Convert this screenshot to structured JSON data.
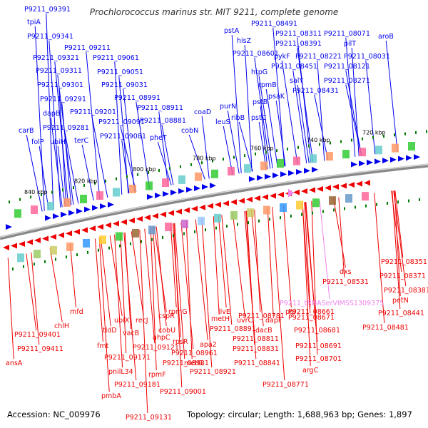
{
  "title": "Prochlorococcus marinus str. MIT 9211, complete genome",
  "footer": {
    "accession": "Accession: NC_009976",
    "summary": "Topology: circular; Length: 1,688,963 bp; Genes: 1,897"
  },
  "colors": {
    "forward": "#0000ee",
    "reverse": "#ee0000",
    "rna": "#ee82ee",
    "backbone": "#888888",
    "tick": "#007a00"
  },
  "scale_labels": [
    "840 kbp",
    "820 kbp",
    "800 kbp",
    "780 kbp",
    "760 kbp",
    "740 kbp",
    "720 kbp"
  ],
  "top_labels": [
    "P9211_09391",
    "tpiA",
    "P9211_09341",
    "P9211_09321",
    "P9211_09311",
    "P9211_09301",
    "P9211_09291",
    "dapB",
    "P9211_09281",
    "carB",
    "ubiH",
    "folP",
    "terC",
    "P9211_09211",
    "P9211_09201",
    "P9211_09061",
    "P9211_09051",
    "P9211_09031",
    "P9211_08991",
    "P9211_09091",
    "P9211_09081",
    "P9211_08911",
    "P9211_08881",
    "pheT",
    "cobN",
    "coaD",
    "leuS",
    "purN",
    "ribB",
    "P9211_08601",
    "hisZ",
    "pstA",
    "P9211_08491",
    "P9211_08311",
    "P9211_08391",
    "pilT",
    "P9211_08071",
    "aroB",
    "htpG",
    "pykF",
    "P9211_08221",
    "P9211_08031",
    "rpmB",
    "P9211_08451",
    "P9211_08121",
    "pstB",
    "psaK",
    "salY",
    "P9211_08431",
    "P9211_08271",
    "pstC"
  ],
  "bottom_labels": [
    "ansA",
    "P9211_09411",
    "P9211_09401",
    "chlH",
    "mfd",
    "fmt",
    "tldD",
    "ubiX",
    "vacB",
    "pnilL34",
    "pmbA",
    "P9211_09181",
    "P9211_09171",
    "P9211_09131",
    "P9211_09121",
    "recJ",
    "rpmF",
    "ahpC",
    "cobU",
    "cspR",
    "rpmG",
    "rpsR",
    "P9211_08981",
    "P9211_08961",
    "metG",
    "P9211_09001",
    "P9211_08921",
    "apa2",
    "metH",
    "ilvE",
    "P9211_08891",
    "uvrC",
    "P9211_08781",
    "P9211_08831",
    "P9211_08811",
    "dacB",
    "dapF",
    "pgi",
    "P9211_08841",
    "P9211_08771",
    "P9211_08661",
    "P9211_08671",
    "P9211_08681",
    "P9211_08691",
    "P9211_08701",
    "argC",
    "P9211_tRNASerVIMSS1309375",
    "dxs",
    "P9211_08531",
    "P9211_08351",
    "P9211_08371",
    "P9211_08381",
    "petN",
    "P9211_08441",
    "P9211_08481"
  ]
}
